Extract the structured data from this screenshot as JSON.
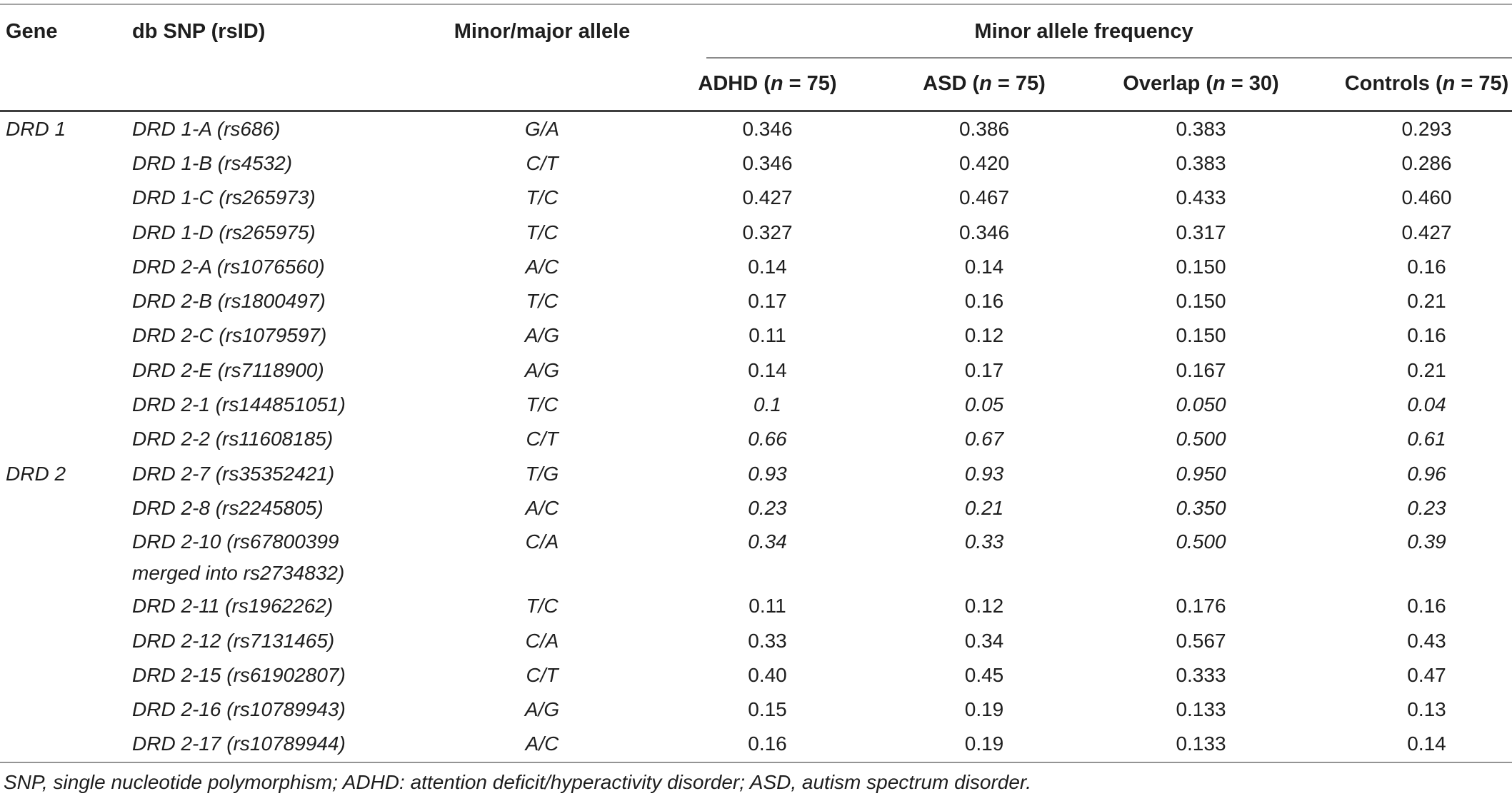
{
  "table": {
    "header": {
      "gene": "Gene",
      "snp": "db SNP (rsID)",
      "allele": "Minor/major allele",
      "maf_group": "Minor allele frequency",
      "maf_columns": [
        {
          "pre": "ADHD (",
          "n": "n",
          "post": " = 75)"
        },
        {
          "pre": "ASD (",
          "n": "n",
          "post": " = 75)"
        },
        {
          "pre": "Overlap (",
          "n": "n",
          "post": " = 30)"
        },
        {
          "pre": "Controls (",
          "n": "n",
          "post": " = 75)"
        }
      ]
    },
    "rows": [
      {
        "gene": "DRD 1",
        "snp": "DRD 1-A (rs686)",
        "allele": "G/A",
        "values": [
          "0.346",
          "0.386",
          "0.383",
          "0.293"
        ],
        "italic": false
      },
      {
        "gene": "",
        "snp": "DRD 1-B (rs4532)",
        "allele": "C/T",
        "values": [
          "0.346",
          "0.420",
          "0.383",
          "0.286"
        ],
        "italic": false
      },
      {
        "gene": "",
        "snp": "DRD 1-C (rs265973)",
        "allele": "T/C",
        "values": [
          "0.427",
          "0.467",
          "0.433",
          "0.460"
        ],
        "italic": false
      },
      {
        "gene": "",
        "snp": "DRD 1-D (rs265975)",
        "allele": "T/C",
        "values": [
          "0.327",
          "0.346",
          "0.317",
          "0.427"
        ],
        "italic": false
      },
      {
        "gene": "",
        "snp": "DRD 2-A (rs1076560)",
        "allele": "A/C",
        "values": [
          "0.14",
          "0.14",
          "0.150",
          "0.16"
        ],
        "italic": false
      },
      {
        "gene": "",
        "snp": "DRD 2-B (rs1800497)",
        "allele": "T/C",
        "values": [
          "0.17",
          "0.16",
          "0.150",
          "0.21"
        ],
        "italic": false
      },
      {
        "gene": "",
        "snp": "DRD 2-C (rs1079597)",
        "allele": "A/G",
        "values": [
          "0.11",
          "0.12",
          "0.150",
          "0.16"
        ],
        "italic": false
      },
      {
        "gene": "",
        "snp": "DRD 2-E (rs7118900)",
        "allele": "A/G",
        "values": [
          "0.14",
          "0.17",
          "0.167",
          "0.21"
        ],
        "italic": false
      },
      {
        "gene": "",
        "snp": "DRD 2-1 (rs144851051)",
        "allele": "T/C",
        "values": [
          "0.1",
          "0.05",
          "0.050",
          "0.04"
        ],
        "italic": true
      },
      {
        "gene": "",
        "snp": "DRD 2-2 (rs11608185)",
        "allele": "C/T",
        "values": [
          "0.66",
          "0.67",
          "0.500",
          "0.61"
        ],
        "italic": true
      },
      {
        "gene": "DRD 2",
        "snp": "DRD 2-7 (rs35352421)",
        "allele": "T/G",
        "values": [
          "0.93",
          "0.93",
          "0.950",
          "0.96"
        ],
        "italic": true
      },
      {
        "gene": "",
        "snp": "DRD 2-8 (rs2245805)",
        "allele": "A/C",
        "values": [
          "0.23",
          "0.21",
          "0.350",
          "0.23"
        ],
        "italic": true
      },
      {
        "gene": "",
        "snp": "DRD 2-10 (rs67800399\nmerged into rs2734832)",
        "allele": "C/A",
        "values": [
          "0.34",
          "0.33",
          "0.500",
          "0.39"
        ],
        "italic": true
      },
      {
        "gene": "",
        "snp": "DRD 2-11 (rs1962262)",
        "allele": "T/C",
        "values": [
          "0.11",
          "0.12",
          "0.176",
          "0.16"
        ],
        "italic": false
      },
      {
        "gene": "",
        "snp": "DRD 2-12 (rs7131465)",
        "allele": "C/A",
        "values": [
          "0.33",
          "0.34",
          "0.567",
          "0.43"
        ],
        "italic": false
      },
      {
        "gene": "",
        "snp": "DRD 2-15 (rs61902807)",
        "allele": "C/T",
        "values": [
          "0.40",
          "0.45",
          "0.333",
          "0.47"
        ],
        "italic": false
      },
      {
        "gene": "",
        "snp": "DRD 2-16 (rs10789943)",
        "allele": "A/G",
        "values": [
          "0.15",
          "0.19",
          "0.133",
          "0.13"
        ],
        "italic": false
      },
      {
        "gene": "",
        "snp": "DRD 2-17 (rs10789944)",
        "allele": "A/C",
        "values": [
          "0.16",
          "0.19",
          "0.133",
          "0.14"
        ],
        "italic": false
      }
    ],
    "footnote": "SNP, single nucleotide polymorphism; ADHD: attention deficit/hyperactivity disorder; ASD, autism spectrum disorder.",
    "colors": {
      "text": "#1e1e1e",
      "rule_light": "#a3a3a3",
      "rule_mid": "#8a8a8a",
      "rule_dark": "#3f3f3f"
    }
  }
}
